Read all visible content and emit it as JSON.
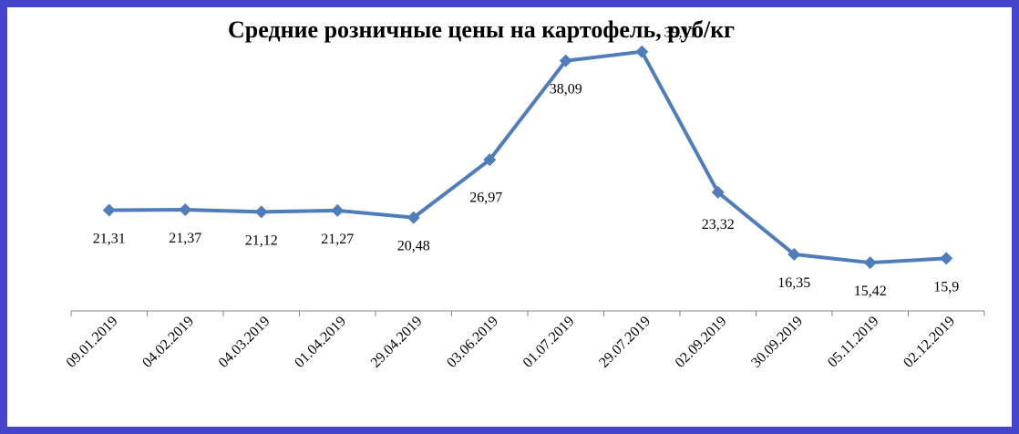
{
  "chart_data": {
    "type": "line",
    "title": "Средние розничные цены на картофель, руб/кг",
    "categories": [
      "09.01.2019",
      "04.02.2019",
      "04.03.2019",
      "01.04.2019",
      "29.04.2019",
      "03.06.2019",
      "01.07.2019",
      "29.07.2019",
      "02.09.2019",
      "30.09.2019",
      "05.11.2019",
      "02.12.2019"
    ],
    "series": [
      {
        "values": [
          21.31,
          21.37,
          21.12,
          21.27,
          20.48,
          26.97,
          38.09,
          39.11,
          23.32,
          16.35,
          15.42,
          15.9
        ],
        "labels": [
          "21,31",
          "21,37",
          "21,12",
          "21,27",
          "20,48",
          "26,97",
          "38,09",
          "39,11",
          "23,32",
          "16,35",
          "15,42",
          "15,9"
        ],
        "color": "#4f7dbb",
        "marker": "diamond"
      }
    ],
    "xlabel": "",
    "ylabel": "",
    "ylim": [
      10,
      40
    ],
    "grid": false,
    "legend": "none"
  }
}
